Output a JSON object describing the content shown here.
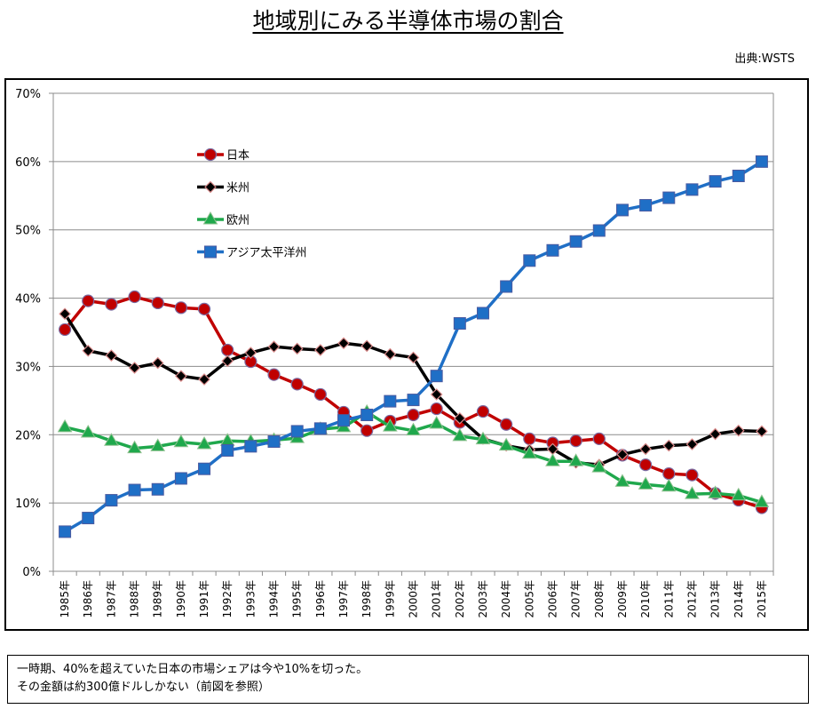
{
  "header": {
    "title": "地域別にみる半導体市場の割合",
    "source": "出典:WSTS"
  },
  "note": {
    "lines": [
      "一時期、40%を超えていた日本の市場シェアは今や10%を切った。",
      "その金額は約300億ドルしかない（前図を参照）"
    ]
  },
  "chart_data": {
    "type": "line",
    "title": "地域別にみる半導体市場の割合",
    "xlabel": "",
    "ylabel": "",
    "ylim": [
      0,
      70
    ],
    "yticks": [
      0,
      10,
      20,
      30,
      40,
      50,
      60,
      70
    ],
    "ytick_labels": [
      "0%",
      "10%",
      "20%",
      "30%",
      "40%",
      "50%",
      "60%",
      "70%"
    ],
    "grid": true,
    "legend_position": "top-left-inside",
    "categories": [
      "1985年",
      "1986年",
      "1987年",
      "1988年",
      "1989年",
      "1990年",
      "1991年",
      "1992年",
      "1993年",
      "1994年",
      "1995年",
      "1996年",
      "1997年",
      "1998年",
      "1999年",
      "2000年",
      "2001年",
      "2002年",
      "2003年",
      "2004年",
      "2005年",
      "2006年",
      "2007年",
      "2008年",
      "2009年",
      "2010年",
      "2011年",
      "2012年",
      "2013年",
      "2014年",
      "2015年"
    ],
    "series": [
      {
        "name": "日本",
        "color": "#c00000",
        "marker": "circle",
        "values": [
          35.4,
          39.6,
          39.1,
          40.2,
          39.3,
          38.6,
          38.4,
          32.4,
          30.7,
          28.8,
          27.4,
          25.9,
          23.3,
          20.6,
          22.0,
          22.9,
          23.8,
          21.8,
          23.4,
          21.5,
          19.4,
          18.8,
          19.1,
          19.4,
          17.0,
          15.6,
          14.3,
          14.1,
          11.4,
          10.4,
          9.3
        ]
      },
      {
        "name": "米州",
        "color": "#000000",
        "marker": "diamond",
        "values": [
          37.7,
          32.3,
          31.6,
          29.8,
          30.5,
          28.6,
          28.1,
          30.8,
          32.0,
          32.9,
          32.6,
          32.4,
          33.4,
          33.0,
          31.8,
          31.3,
          25.9,
          22.4,
          19.4,
          18.4,
          17.8,
          17.9,
          15.9,
          15.6,
          17.1,
          17.9,
          18.4,
          18.6,
          20.1,
          20.6,
          20.5
        ]
      },
      {
        "name": "欧州",
        "color": "#1fa84c",
        "marker": "triangle",
        "values": [
          21.1,
          20.3,
          19.1,
          18.0,
          18.3,
          18.9,
          18.6,
          19.1,
          19.0,
          19.2,
          19.5,
          20.8,
          21.1,
          23.3,
          21.2,
          20.6,
          21.6,
          19.8,
          19.3,
          18.4,
          17.2,
          16.1,
          16.1,
          15.2,
          13.1,
          12.7,
          12.4,
          11.3,
          11.4,
          11.1,
          10.1
        ]
      },
      {
        "name": "アジア太平洋州",
        "color": "#1f6fc6",
        "marker": "square",
        "values": [
          5.8,
          7.8,
          10.4,
          11.9,
          12.0,
          13.6,
          15.0,
          17.7,
          18.3,
          19.0,
          20.5,
          20.9,
          22.1,
          22.9,
          24.9,
          25.1,
          28.6,
          36.3,
          37.8,
          41.7,
          45.5,
          47.0,
          48.3,
          49.9,
          52.9,
          53.6,
          54.7,
          55.9,
          57.1,
          57.9,
          60.0
        ]
      }
    ]
  }
}
